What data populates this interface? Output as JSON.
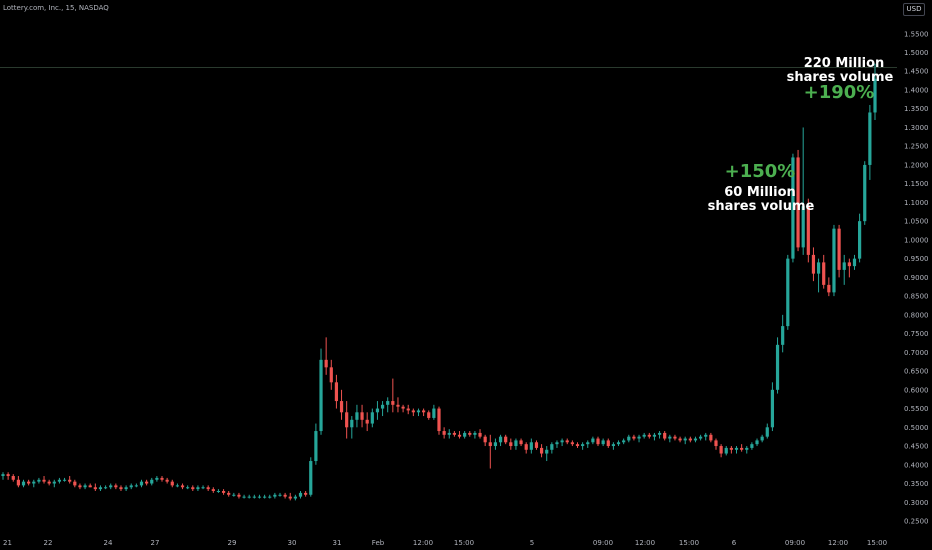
{
  "header": {
    "symbol_line": "Lottery.com, Inc., 15, NASDAQ",
    "currency": "USD"
  },
  "colors": {
    "background": "#000000",
    "up": "#26a69a",
    "down": "#ef5350",
    "axis_text": "#b2b5be",
    "annotation_green": "#4caf50",
    "annotation_white": "#ffffff"
  },
  "chart_data": {
    "type": "candlestick",
    "title": "",
    "xlabel": "",
    "ylabel": "",
    "ylim": [
      0.25,
      1.6
    ],
    "grid": false,
    "y_ticks": [
      "0.2500",
      "0.3000",
      "0.3500",
      "0.4000",
      "0.4500",
      "0.5000",
      "0.5500",
      "0.6000",
      "0.6500",
      "0.7000",
      "0.7500",
      "0.8000",
      "0.8500",
      "0.9000",
      "0.9500",
      "1.0000",
      "1.0500",
      "1.1000",
      "1.1500",
      "1.2000",
      "1.2500",
      "1.3000",
      "1.3500",
      "1.4000",
      "1.4500",
      "1.5000",
      "1.5500"
    ],
    "x_tick_labels": [
      "21",
      "22",
      "24",
      "27",
      "29",
      "30",
      "31",
      "Feb",
      "12:00",
      "15:00",
      "5",
      "09:00",
      "12:00",
      "15:00",
      "6",
      "09:00",
      "12:00",
      "15:00"
    ],
    "reference_line": 1.46,
    "candles": [
      [
        0.37,
        0.38,
        0.36,
        0.375
      ],
      [
        0.375,
        0.38,
        0.36,
        0.37
      ],
      [
        0.37,
        0.375,
        0.355,
        0.36
      ],
      [
        0.36,
        0.37,
        0.34,
        0.345
      ],
      [
        0.345,
        0.36,
        0.34,
        0.355
      ],
      [
        0.355,
        0.36,
        0.345,
        0.35
      ],
      [
        0.35,
        0.36,
        0.34,
        0.355
      ],
      [
        0.355,
        0.365,
        0.35,
        0.36
      ],
      [
        0.36,
        0.37,
        0.35,
        0.355
      ],
      [
        0.355,
        0.36,
        0.345,
        0.35
      ],
      [
        0.35,
        0.36,
        0.34,
        0.355
      ],
      [
        0.355,
        0.365,
        0.35,
        0.36
      ],
      [
        0.36,
        0.365,
        0.355,
        0.36
      ],
      [
        0.36,
        0.37,
        0.35,
        0.355
      ],
      [
        0.355,
        0.36,
        0.34,
        0.345
      ],
      [
        0.345,
        0.35,
        0.335,
        0.34
      ],
      [
        0.34,
        0.35,
        0.335,
        0.345
      ],
      [
        0.345,
        0.35,
        0.34,
        0.34
      ],
      [
        0.34,
        0.35,
        0.33,
        0.335
      ],
      [
        0.335,
        0.345,
        0.33,
        0.34
      ],
      [
        0.34,
        0.345,
        0.335,
        0.34
      ],
      [
        0.34,
        0.35,
        0.335,
        0.345
      ],
      [
        0.345,
        0.35,
        0.335,
        0.34
      ],
      [
        0.34,
        0.345,
        0.33,
        0.335
      ],
      [
        0.335,
        0.345,
        0.33,
        0.34
      ],
      [
        0.34,
        0.35,
        0.335,
        0.345
      ],
      [
        0.345,
        0.35,
        0.34,
        0.345
      ],
      [
        0.345,
        0.36,
        0.34,
        0.355
      ],
      [
        0.355,
        0.36,
        0.345,
        0.35
      ],
      [
        0.35,
        0.365,
        0.345,
        0.36
      ],
      [
        0.36,
        0.37,
        0.355,
        0.365
      ],
      [
        0.365,
        0.37,
        0.355,
        0.36
      ],
      [
        0.36,
        0.365,
        0.35,
        0.355
      ],
      [
        0.355,
        0.36,
        0.34,
        0.345
      ],
      [
        0.345,
        0.35,
        0.34,
        0.345
      ],
      [
        0.345,
        0.35,
        0.335,
        0.34
      ],
      [
        0.34,
        0.345,
        0.335,
        0.34
      ],
      [
        0.34,
        0.345,
        0.33,
        0.335
      ],
      [
        0.335,
        0.345,
        0.33,
        0.34
      ],
      [
        0.34,
        0.345,
        0.335,
        0.34
      ],
      [
        0.34,
        0.345,
        0.33,
        0.335
      ],
      [
        0.335,
        0.34,
        0.325,
        0.33
      ],
      [
        0.33,
        0.335,
        0.325,
        0.33
      ],
      [
        0.33,
        0.335,
        0.32,
        0.325
      ],
      [
        0.325,
        0.33,
        0.315,
        0.32
      ],
      [
        0.32,
        0.325,
        0.315,
        0.32
      ],
      [
        0.32,
        0.325,
        0.31,
        0.315
      ],
      [
        0.315,
        0.32,
        0.31,
        0.315
      ],
      [
        0.315,
        0.32,
        0.31,
        0.315
      ],
      [
        0.315,
        0.32,
        0.31,
        0.315
      ],
      [
        0.315,
        0.32,
        0.31,
        0.315
      ],
      [
        0.315,
        0.32,
        0.31,
        0.315
      ],
      [
        0.315,
        0.32,
        0.31,
        0.315
      ],
      [
        0.315,
        0.325,
        0.31,
        0.32
      ],
      [
        0.32,
        0.325,
        0.315,
        0.32
      ],
      [
        0.32,
        0.325,
        0.31,
        0.315
      ],
      [
        0.315,
        0.325,
        0.305,
        0.31
      ],
      [
        0.31,
        0.32,
        0.305,
        0.315
      ],
      [
        0.315,
        0.33,
        0.31,
        0.325
      ],
      [
        0.325,
        0.33,
        0.315,
        0.32
      ],
      [
        0.32,
        0.42,
        0.315,
        0.41
      ],
      [
        0.41,
        0.51,
        0.4,
        0.49
      ],
      [
        0.49,
        0.71,
        0.48,
        0.68
      ],
      [
        0.68,
        0.74,
        0.64,
        0.66
      ],
      [
        0.66,
        0.68,
        0.6,
        0.62
      ],
      [
        0.62,
        0.64,
        0.55,
        0.57
      ],
      [
        0.57,
        0.6,
        0.52,
        0.54
      ],
      [
        0.54,
        0.57,
        0.47,
        0.5
      ],
      [
        0.5,
        0.53,
        0.47,
        0.52
      ],
      [
        0.52,
        0.56,
        0.5,
        0.54
      ],
      [
        0.54,
        0.56,
        0.5,
        0.52
      ],
      [
        0.52,
        0.54,
        0.49,
        0.51
      ],
      [
        0.51,
        0.55,
        0.5,
        0.54
      ],
      [
        0.54,
        0.57,
        0.52,
        0.55
      ],
      [
        0.55,
        0.57,
        0.53,
        0.56
      ],
      [
        0.56,
        0.58,
        0.54,
        0.57
      ],
      [
        0.57,
        0.63,
        0.54,
        0.56
      ],
      [
        0.56,
        0.58,
        0.54,
        0.555
      ],
      [
        0.555,
        0.56,
        0.54,
        0.55
      ],
      [
        0.55,
        0.56,
        0.535,
        0.545
      ],
      [
        0.545,
        0.55,
        0.53,
        0.54
      ],
      [
        0.54,
        0.55,
        0.53,
        0.545
      ],
      [
        0.545,
        0.55,
        0.53,
        0.54
      ],
      [
        0.54,
        0.545,
        0.52,
        0.525
      ],
      [
        0.525,
        0.56,
        0.52,
        0.55
      ],
      [
        0.55,
        0.555,
        0.48,
        0.49
      ],
      [
        0.49,
        0.5,
        0.47,
        0.48
      ],
      [
        0.48,
        0.495,
        0.47,
        0.485
      ],
      [
        0.485,
        0.49,
        0.475,
        0.48
      ],
      [
        0.48,
        0.49,
        0.47,
        0.475
      ],
      [
        0.475,
        0.49,
        0.47,
        0.485
      ],
      [
        0.485,
        0.49,
        0.475,
        0.48
      ],
      [
        0.48,
        0.49,
        0.47,
        0.485
      ],
      [
        0.485,
        0.495,
        0.47,
        0.475
      ],
      [
        0.475,
        0.48,
        0.45,
        0.46
      ],
      [
        0.46,
        0.48,
        0.39,
        0.45
      ],
      [
        0.45,
        0.47,
        0.44,
        0.46
      ],
      [
        0.46,
        0.48,
        0.45,
        0.475
      ],
      [
        0.475,
        0.48,
        0.455,
        0.46
      ],
      [
        0.46,
        0.47,
        0.44,
        0.45
      ],
      [
        0.45,
        0.47,
        0.44,
        0.465
      ],
      [
        0.465,
        0.47,
        0.45,
        0.455
      ],
      [
        0.455,
        0.46,
        0.43,
        0.44
      ],
      [
        0.44,
        0.47,
        0.43,
        0.46
      ],
      [
        0.46,
        0.465,
        0.44,
        0.445
      ],
      [
        0.445,
        0.455,
        0.42,
        0.43
      ],
      [
        0.43,
        0.45,
        0.41,
        0.44
      ],
      [
        0.44,
        0.46,
        0.43,
        0.455
      ],
      [
        0.455,
        0.465,
        0.445,
        0.46
      ],
      [
        0.46,
        0.47,
        0.45,
        0.465
      ],
      [
        0.465,
        0.47,
        0.455,
        0.46
      ],
      [
        0.46,
        0.465,
        0.45,
        0.455
      ],
      [
        0.455,
        0.46,
        0.445,
        0.45
      ],
      [
        0.45,
        0.46,
        0.44,
        0.455
      ],
      [
        0.455,
        0.465,
        0.445,
        0.46
      ],
      [
        0.46,
        0.475,
        0.455,
        0.47
      ],
      [
        0.47,
        0.475,
        0.45,
        0.455
      ],
      [
        0.455,
        0.47,
        0.45,
        0.465
      ],
      [
        0.465,
        0.47,
        0.445,
        0.45
      ],
      [
        0.45,
        0.46,
        0.44,
        0.455
      ],
      [
        0.455,
        0.465,
        0.45,
        0.46
      ],
      [
        0.46,
        0.47,
        0.455,
        0.465
      ],
      [
        0.465,
        0.48,
        0.46,
        0.475
      ],
      [
        0.475,
        0.48,
        0.465,
        0.47
      ],
      [
        0.47,
        0.48,
        0.46,
        0.475
      ],
      [
        0.475,
        0.485,
        0.47,
        0.48
      ],
      [
        0.48,
        0.485,
        0.47,
        0.475
      ],
      [
        0.475,
        0.485,
        0.465,
        0.48
      ],
      [
        0.48,
        0.49,
        0.47,
        0.485
      ],
      [
        0.485,
        0.49,
        0.465,
        0.47
      ],
      [
        0.47,
        0.48,
        0.46,
        0.475
      ],
      [
        0.475,
        0.48,
        0.465,
        0.47
      ],
      [
        0.47,
        0.475,
        0.46,
        0.465
      ],
      [
        0.465,
        0.475,
        0.455,
        0.47
      ],
      [
        0.47,
        0.475,
        0.46,
        0.465
      ],
      [
        0.465,
        0.475,
        0.46,
        0.47
      ],
      [
        0.47,
        0.48,
        0.465,
        0.475
      ],
      [
        0.475,
        0.485,
        0.465,
        0.48
      ],
      [
        0.48,
        0.485,
        0.46,
        0.465
      ],
      [
        0.465,
        0.47,
        0.44,
        0.45
      ],
      [
        0.45,
        0.455,
        0.42,
        0.43
      ],
      [
        0.43,
        0.45,
        0.425,
        0.445
      ],
      [
        0.445,
        0.45,
        0.43,
        0.44
      ],
      [
        0.44,
        0.45,
        0.43,
        0.445
      ],
      [
        0.445,
        0.455,
        0.435,
        0.44
      ],
      [
        0.44,
        0.45,
        0.43,
        0.445
      ],
      [
        0.445,
        0.46,
        0.44,
        0.455
      ],
      [
        0.455,
        0.47,
        0.45,
        0.465
      ],
      [
        0.465,
        0.48,
        0.46,
        0.475
      ],
      [
        0.475,
        0.51,
        0.47,
        0.5
      ],
      [
        0.5,
        0.62,
        0.49,
        0.6
      ],
      [
        0.6,
        0.74,
        0.59,
        0.72
      ],
      [
        0.72,
        0.8,
        0.7,
        0.77
      ],
      [
        0.77,
        0.96,
        0.76,
        0.95
      ],
      [
        0.95,
        1.23,
        0.94,
        1.22
      ],
      [
        1.22,
        1.24,
        0.97,
        0.98
      ],
      [
        0.98,
        1.3,
        0.96,
        1.09
      ],
      [
        1.09,
        1.11,
        0.94,
        0.96
      ],
      [
        0.96,
        0.98,
        0.89,
        0.91
      ],
      [
        0.91,
        0.95,
        0.86,
        0.94
      ],
      [
        0.94,
        0.96,
        0.87,
        0.88
      ],
      [
        0.88,
        0.9,
        0.85,
        0.86
      ],
      [
        0.86,
        1.04,
        0.85,
        1.03
      ],
      [
        1.03,
        1.04,
        0.9,
        0.92
      ],
      [
        0.92,
        0.96,
        0.88,
        0.94
      ],
      [
        0.94,
        0.95,
        0.9,
        0.93
      ],
      [
        0.93,
        0.96,
        0.92,
        0.95
      ],
      [
        0.95,
        1.07,
        0.94,
        1.05
      ],
      [
        1.05,
        1.21,
        1.04,
        1.2
      ],
      [
        1.2,
        1.36,
        1.16,
        1.34
      ],
      [
        1.34,
        1.47,
        1.32,
        1.43
      ]
    ],
    "annotations": [
      {
        "text": "220 Million",
        "color": "white"
      },
      {
        "text": "shares volume",
        "color": "white"
      },
      {
        "text": "+190%",
        "color": "green"
      },
      {
        "text": "+150%",
        "color": "green"
      },
      {
        "text": "60 Million",
        "color": "white"
      },
      {
        "text": "shares volume",
        "color": "white"
      }
    ]
  }
}
